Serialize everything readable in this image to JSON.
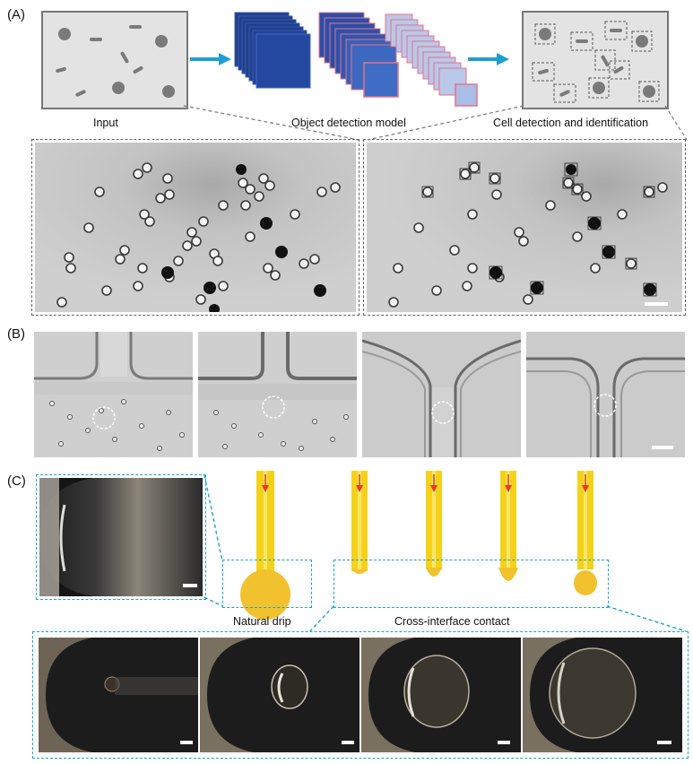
{
  "panels": {
    "a": {
      "label": "(A)",
      "input_caption": "Input",
      "model_caption": "Object detection model",
      "output_caption": "Cell detection and identification"
    },
    "b": {
      "label": "(B)"
    },
    "c": {
      "label": "(C)",
      "natural_drip_caption": "Natural drip",
      "cross_interface_caption": "Cross-interface contact"
    }
  },
  "colors": {
    "arrow": "#1e9fd4",
    "layer_dark_blue": "#1f3f8f",
    "layer_light_blue": "#b9c8e8",
    "layer_edge_pink": "#e8708a",
    "needle_yellow": "#f5d21a",
    "droplet_orange": "#f2c12e",
    "flow_arrow_red": "#e53a2a",
    "cyan_dash": "#1aa3c8"
  }
}
